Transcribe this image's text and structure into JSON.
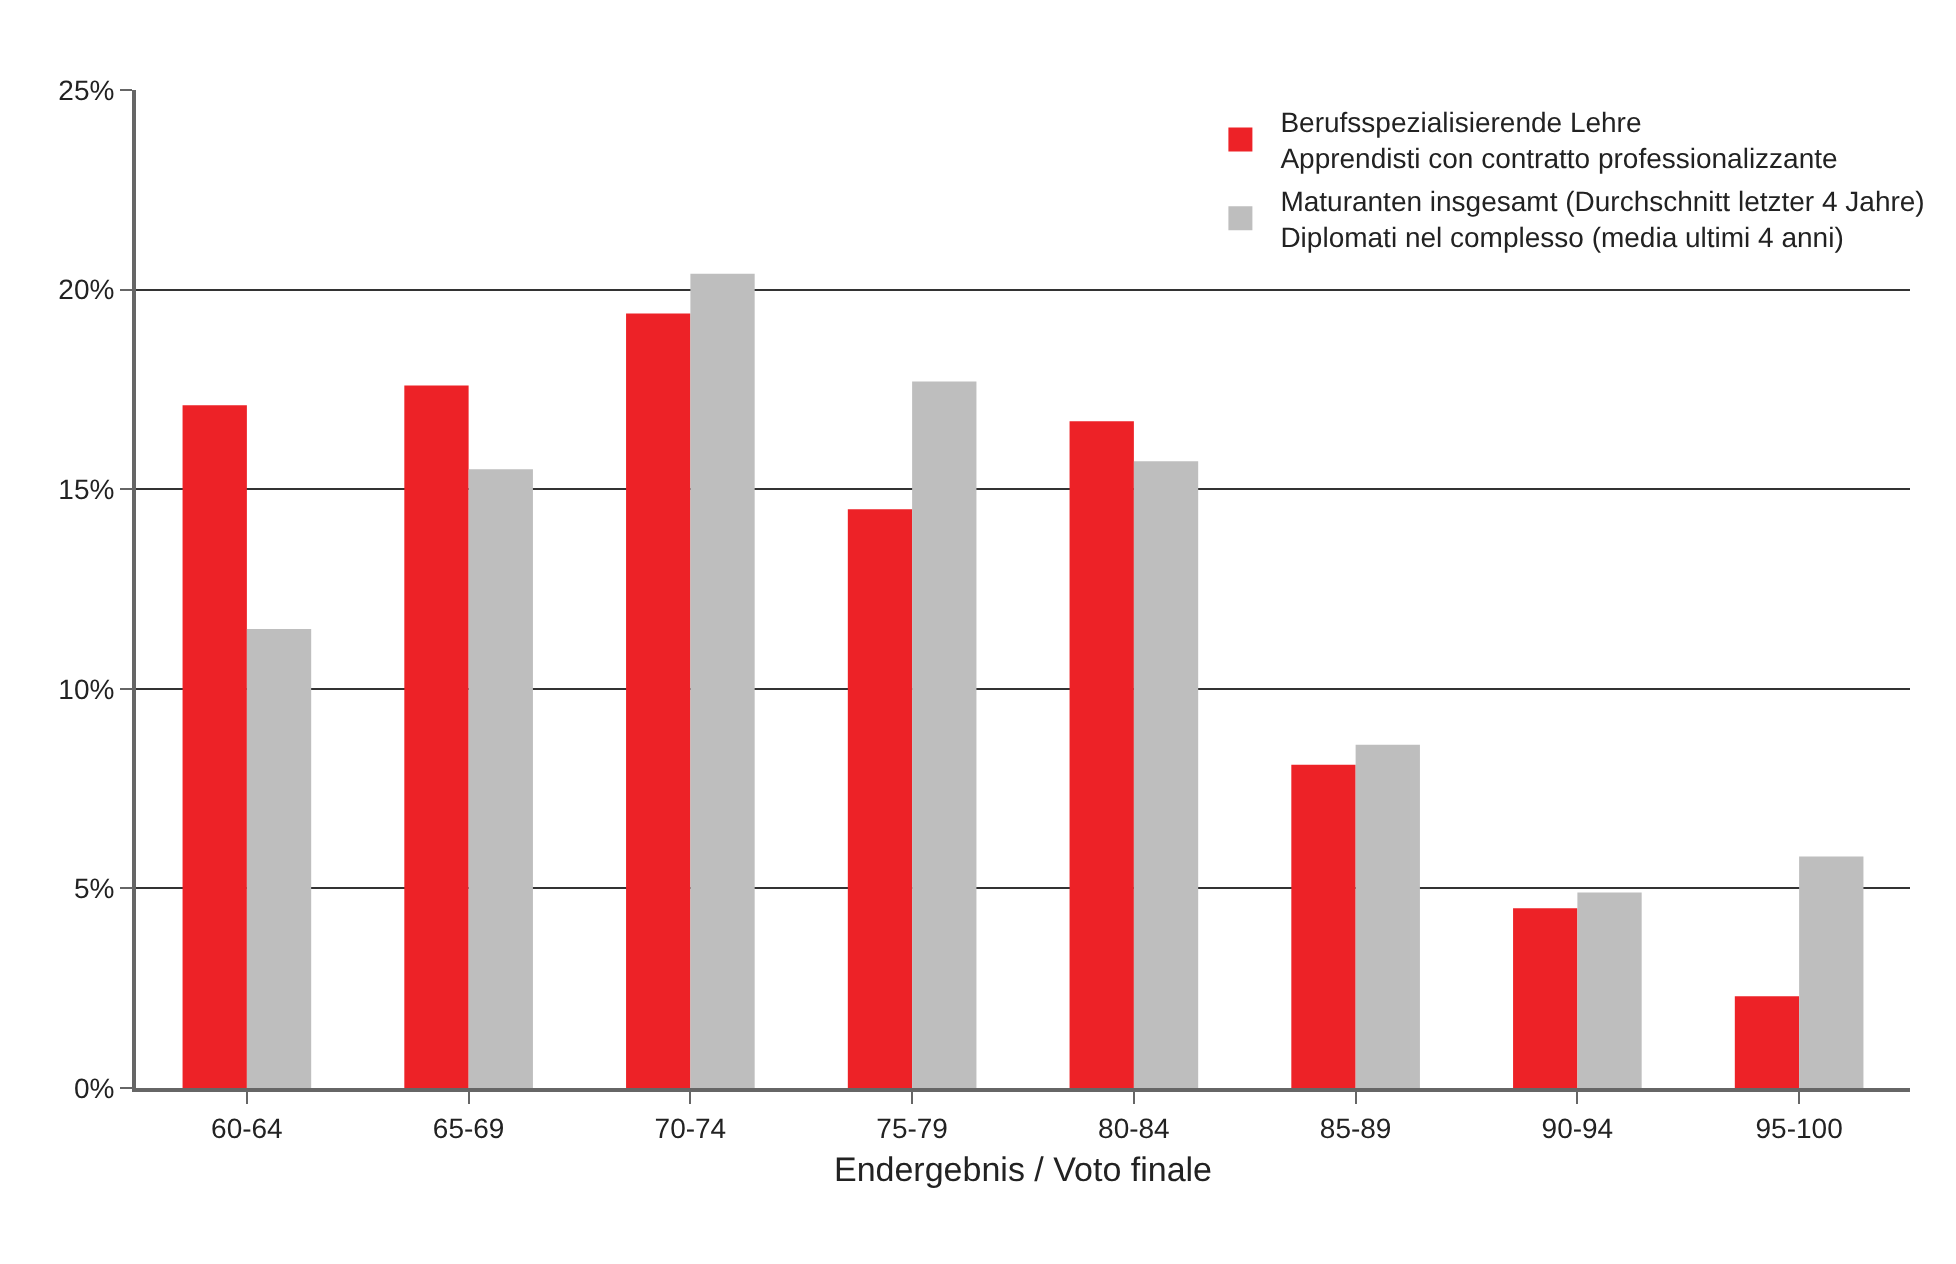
{
  "chart_data": {
    "type": "bar",
    "xlabel": "Endergebnis / Voto finale",
    "categories": [
      "60-64",
      "65-69",
      "70-74",
      "75-79",
      "80-84",
      "85-89",
      "90-94",
      "95-100"
    ],
    "series": [
      {
        "name": "Berufsspezialisierende Lehre\nApprendisti con contratto professionalizzante",
        "color": "#ed2227",
        "values": [
          17.1,
          17.6,
          19.4,
          14.5,
          16.7,
          8.1,
          4.5,
          2.3
        ]
      },
      {
        "name": "Maturanten insgesamt (Durchschnitt letzter 4 Jahre)\nDiplomati nel complesso (media ultimi 4 anni)",
        "color": "#bebebe",
        "values": [
          11.5,
          15.5,
          20.4,
          17.7,
          15.7,
          8.6,
          4.9,
          5.8
        ]
      }
    ],
    "ylim": [
      0,
      25
    ],
    "yticks": [
      {
        "value": 0,
        "label": "0%"
      },
      {
        "value": 5,
        "label": "5%"
      },
      {
        "value": 10,
        "label": "10%"
      },
      {
        "value": 15,
        "label": "15%"
      },
      {
        "value": 20,
        "label": "20%"
      },
      {
        "value": 25,
        "label": "25%"
      }
    ],
    "grid": "y",
    "legend": "top right"
  }
}
